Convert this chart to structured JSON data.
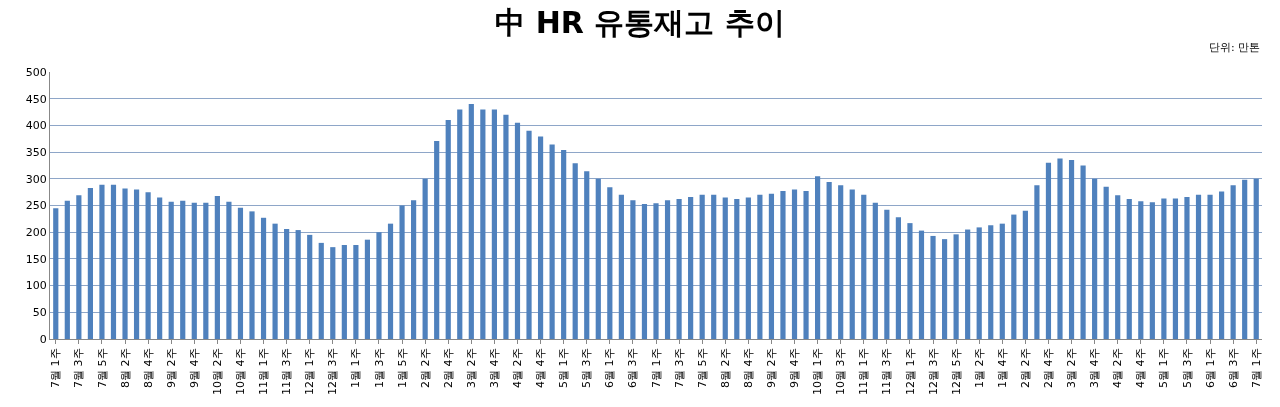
{
  "chart_data": {
    "type": "bar",
    "title": "中 HR 유통재고 추이",
    "annotations": [
      "단위: 만톤"
    ],
    "categories": [
      "7월 1주",
      null,
      "7월 3주",
      null,
      "7월 5주",
      null,
      "8월 2주",
      null,
      "8월 4주",
      null,
      "9월 2주",
      null,
      "9월 4주",
      null,
      "10월 2주",
      null,
      "10월 4주",
      null,
      "11월 1주",
      null,
      "11월 3주",
      null,
      "12월 1주",
      null,
      "12월 3주",
      null,
      "1월 1주",
      null,
      "1월 3주",
      null,
      "1월 5주",
      null,
      "2월 2주",
      null,
      "2월 4주",
      null,
      "3월 2주",
      null,
      "3월 4주",
      null,
      "4월 2주",
      null,
      "4월 4주",
      null,
      "5월 1주",
      null,
      "5월 3주",
      null,
      "6월 1주",
      null,
      "6월 3주",
      null,
      "7월 1주",
      null,
      "7월 3주",
      null,
      "7월 5주",
      null,
      "8월 2주",
      null,
      "8월 4주",
      null,
      "9월 2주",
      null,
      "9월 4주",
      null,
      "10월 1주",
      null,
      "10월 3주",
      null,
      "11월 1주",
      null,
      "11월 3주",
      null,
      "12월 1주",
      null,
      "12월 3주",
      null,
      "12월 5주",
      null,
      "1월 2주",
      null,
      "1월 4주",
      null,
      "2월 2주",
      null,
      "2월 4주",
      null,
      "3월 2주",
      null,
      "3월 4주",
      null,
      "4월 2주",
      null,
      "4월 4주",
      null,
      "5월 1주",
      null,
      "5월 3주",
      null,
      "6월 1주",
      null,
      "6월 3주",
      null,
      "7월 1주"
    ],
    "values": [
      245,
      259,
      269,
      283,
      289,
      289,
      282,
      280,
      275,
      265,
      257,
      259,
      255,
      255,
      268,
      257,
      246,
      239,
      227,
      216,
      206,
      204,
      195,
      180,
      172,
      176,
      176,
      186,
      200,
      216,
      250,
      260,
      300,
      371,
      410,
      430,
      440,
      430,
      430,
      420,
      405,
      390,
      379,
      364,
      354,
      329,
      314,
      300,
      284,
      270,
      260,
      253,
      254,
      260,
      262,
      266,
      270,
      270,
      265,
      262,
      265,
      270,
      272,
      277,
      280,
      277,
      305,
      294,
      288,
      280,
      270,
      255,
      242,
      228,
      217,
      203,
      193,
      187,
      196,
      205,
      209,
      213,
      216,
      233,
      240,
      288,
      330,
      338,
      335,
      325,
      300,
      285,
      269,
      262,
      258,
      256,
      263,
      263,
      266,
      270,
      270,
      276,
      288,
      298,
      300
    ],
    "color": "#4f81bd",
    "ylim": [
      0,
      500
    ],
    "yticks": [
      0,
      50,
      100,
      150,
      200,
      250,
      300,
      350,
      400,
      450,
      500
    ],
    "grid": "y"
  }
}
